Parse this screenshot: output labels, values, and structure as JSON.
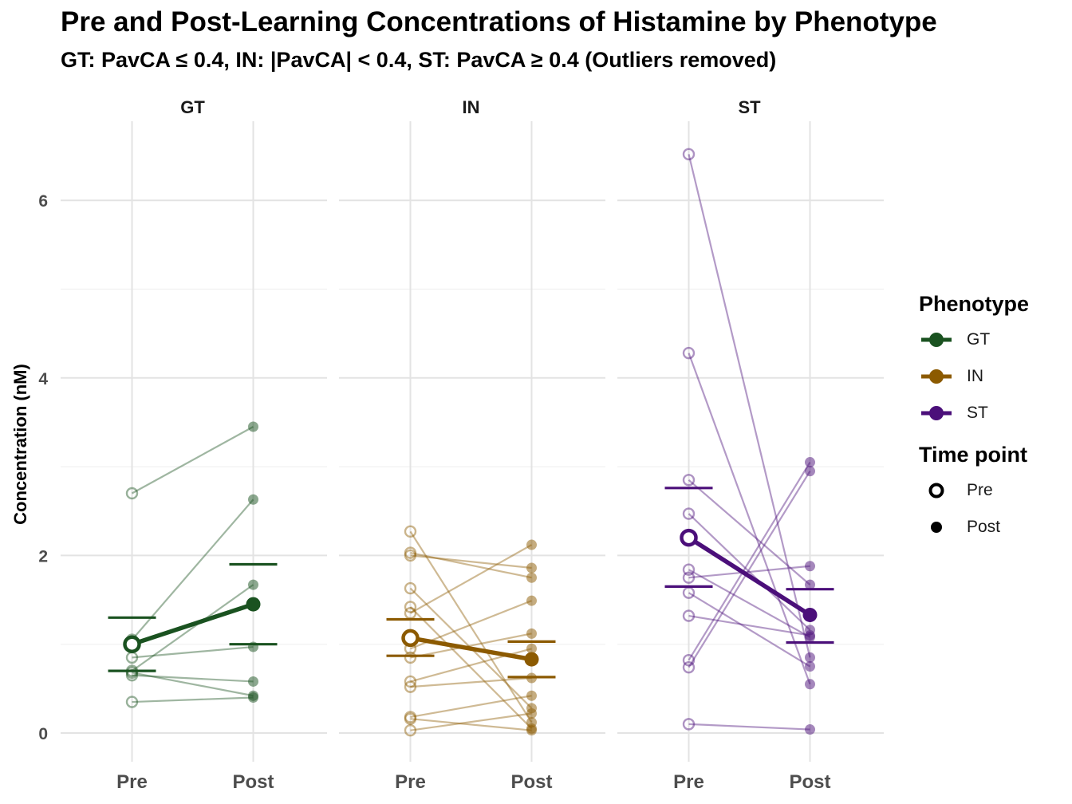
{
  "chart_data": {
    "type": "line",
    "title": "Pre and Post-Learning Concentrations of Histamine by Phenotype",
    "subtitle": "GT: PavCA ≤ 0.4, IN: |PavCA| < 0.4, ST: PavCA ≥ 0.4 (Outliers removed)",
    "ylabel": "Concentration (nM)",
    "xlabel": "",
    "x": [
      "Pre",
      "Post"
    ],
    "yticks": [
      0,
      2,
      4,
      6
    ],
    "ylim": [
      -0.15,
      6.8
    ],
    "grid": true,
    "legend_placement": "right",
    "panels": [
      {
        "name": "GT",
        "color": "#1a5220",
        "pairs": [
          [
            2.7,
            3.45
          ],
          [
            1.05,
            2.63
          ],
          [
            0.7,
            1.67
          ],
          [
            0.85,
            0.97
          ],
          [
            0.65,
            0.58
          ],
          [
            0.68,
            0.42
          ],
          [
            0.35,
            0.4
          ]
        ],
        "mean": [
          1.0,
          1.45
        ],
        "error": [
          [
            0.7,
            1.3
          ],
          [
            1.0,
            1.9
          ]
        ]
      },
      {
        "name": "IN",
        "color": "#8c5a00",
        "pairs": [
          [
            2.27,
            0.12
          ],
          [
            2.03,
            1.75
          ],
          [
            2.0,
            1.86
          ],
          [
            1.63,
            0.28
          ],
          [
            1.42,
            0.05
          ],
          [
            1.35,
            2.12
          ],
          [
            0.95,
            1.49
          ],
          [
            0.85,
            1.12
          ],
          [
            0.58,
            0.95
          ],
          [
            0.52,
            0.62
          ],
          [
            0.18,
            0.42
          ],
          [
            0.16,
            0.03
          ],
          [
            0.03,
            0.22
          ]
        ],
        "mean": [
          1.07,
          0.83
        ],
        "error": [
          [
            0.87,
            1.28
          ],
          [
            0.63,
            1.03
          ]
        ]
      },
      {
        "name": "ST",
        "color": "#4b0f7a",
        "pairs": [
          [
            6.52,
            0.85
          ],
          [
            4.28,
            0.55
          ],
          [
            2.85,
            1.67
          ],
          [
            2.47,
            1.16
          ],
          [
            1.84,
            1.08
          ],
          [
            1.75,
            1.88
          ],
          [
            1.58,
            0.75
          ],
          [
            1.32,
            1.1
          ],
          [
            0.82,
            3.05
          ],
          [
            0.74,
            2.95
          ],
          [
            0.1,
            0.04
          ]
        ],
        "mean": [
          2.2,
          1.33
        ],
        "error": [
          [
            1.65,
            2.76
          ],
          [
            1.02,
            1.62
          ]
        ]
      }
    ]
  },
  "legend": {
    "phenotype_title": "Phenotype",
    "phenotypes": [
      {
        "label": "GT",
        "color": "#1a5220"
      },
      {
        "label": "IN",
        "color": "#8c5a00"
      },
      {
        "label": "ST",
        "color": "#4b0f7a"
      }
    ],
    "timepoint_title": "Time point",
    "timepoints": [
      {
        "label": "Pre",
        "marker": "open-circle"
      },
      {
        "label": "Post",
        "marker": "filled-circle"
      }
    ]
  }
}
